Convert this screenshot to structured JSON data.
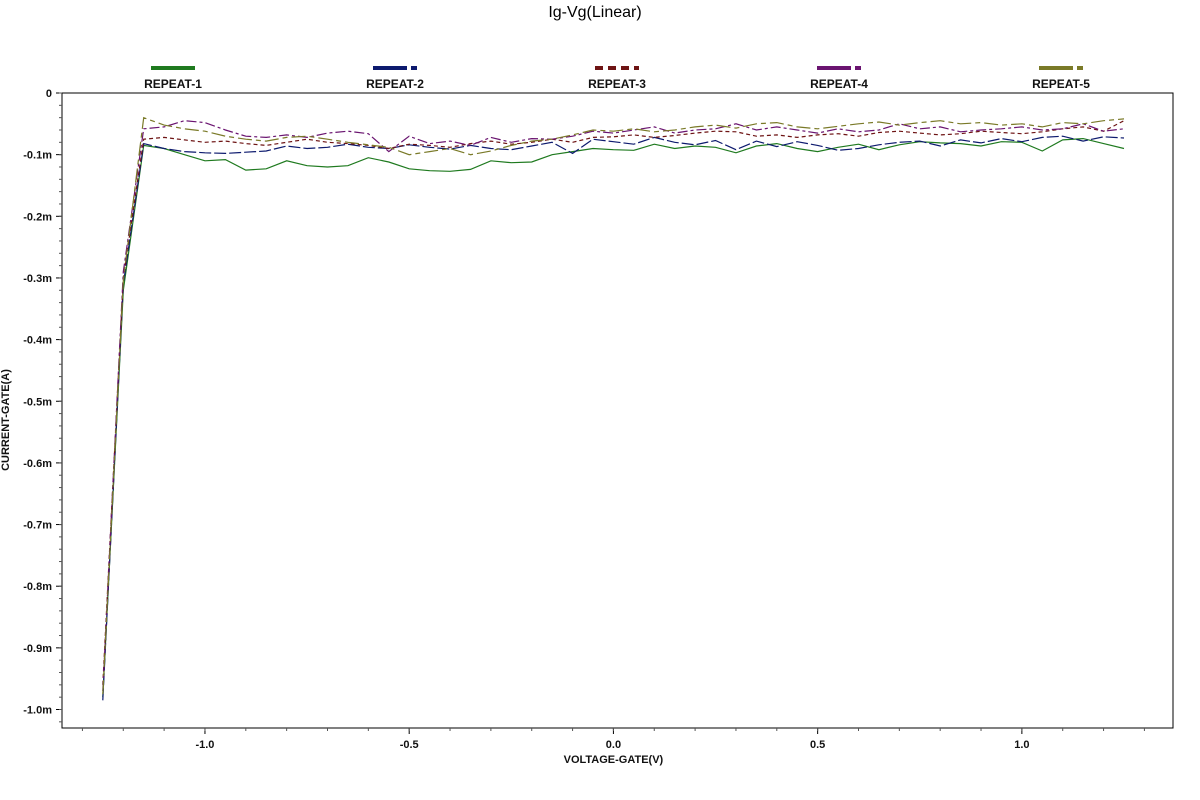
{
  "chart_data": {
    "type": "line",
    "title": "Ig-Vg(Linear)",
    "xlabel": "VOLTAGE-GATE(V)",
    "ylabel": "CURRENT-GATE(A)",
    "xlim": [
      -1.35,
      1.37
    ],
    "ylim": [
      -1.03,
      0
    ],
    "x_ticks": [
      {
        "value": -1.0,
        "label": "-1.0"
      },
      {
        "value": -0.5,
        "label": "-0.5"
      },
      {
        "value": 0.0,
        "label": "0.0"
      },
      {
        "value": 0.5,
        "label": "0.5"
      },
      {
        "value": 1.0,
        "label": "1.0"
      }
    ],
    "y_ticks": [
      {
        "value": 0,
        "label": "0"
      },
      {
        "value": -0.1,
        "label": "-0.1m"
      },
      {
        "value": -0.2,
        "label": "-0.2m"
      },
      {
        "value": -0.3,
        "label": "-0.3m"
      },
      {
        "value": -0.4,
        "label": "-0.4m"
      },
      {
        "value": -0.5,
        "label": "-0.5m"
      },
      {
        "value": -0.6,
        "label": "-0.6m"
      },
      {
        "value": -0.7,
        "label": "-0.7m"
      },
      {
        "value": -0.8,
        "label": "-0.8m"
      },
      {
        "value": -0.9,
        "label": "-0.9m"
      },
      {
        "value": -1.0,
        "label": "-1.0m"
      }
    ],
    "grid": false,
    "legend_position": "top",
    "series": [
      {
        "name": "REPEAT-1",
        "color": "#1f7a1f",
        "dash": "",
        "x": [
          -1.25,
          -1.2,
          -1.15,
          -1.1,
          -1.05,
          -1.0,
          -0.95,
          -0.9,
          -0.85,
          -0.8,
          -0.75,
          -0.7,
          -0.65,
          -0.6,
          -0.55,
          -0.5,
          -0.45,
          -0.4,
          -0.35,
          -0.3,
          -0.25,
          -0.2,
          -0.15,
          -0.1,
          -0.05,
          0.0,
          0.05,
          0.1,
          0.15,
          0.2,
          0.25,
          0.3,
          0.35,
          0.4,
          0.45,
          0.5,
          0.55,
          0.6,
          0.65,
          0.7,
          0.75,
          0.8,
          0.85,
          0.9,
          0.95,
          1.0,
          1.05,
          1.1,
          1.15,
          1.2,
          1.25
        ],
        "y": [
          -0.98,
          -0.32,
          -0.085,
          -0.09,
          -0.1,
          -0.11,
          -0.108,
          -0.125,
          -0.123,
          -0.11,
          -0.118,
          -0.12,
          -0.118,
          -0.105,
          -0.112,
          -0.123,
          -0.126,
          -0.127,
          -0.124,
          -0.11,
          -0.113,
          -0.112,
          -0.1,
          -0.095,
          -0.09,
          -0.092,
          -0.093,
          -0.083,
          -0.09,
          -0.086,
          -0.088,
          -0.097,
          -0.086,
          -0.082,
          -0.09,
          -0.095,
          -0.088,
          -0.083,
          -0.092,
          -0.084,
          -0.079,
          -0.081,
          -0.082,
          -0.086,
          -0.079,
          -0.08,
          -0.094,
          -0.076,
          -0.074,
          -0.082,
          -0.09
        ]
      },
      {
        "name": "REPEAT-2",
        "color": "#0d1a6e",
        "dash": "12,3",
        "x": [
          -1.25,
          -1.2,
          -1.15,
          -1.1,
          -1.05,
          -1.0,
          -0.95,
          -0.9,
          -0.85,
          -0.8,
          -0.75,
          -0.7,
          -0.65,
          -0.6,
          -0.55,
          -0.5,
          -0.45,
          -0.4,
          -0.35,
          -0.3,
          -0.25,
          -0.2,
          -0.15,
          -0.1,
          -0.05,
          0.0,
          0.05,
          0.1,
          0.15,
          0.2,
          0.25,
          0.3,
          0.35,
          0.4,
          0.45,
          0.5,
          0.55,
          0.6,
          0.65,
          0.7,
          0.75,
          0.8,
          0.85,
          0.9,
          0.95,
          1.0,
          1.05,
          1.1,
          1.15,
          1.2,
          1.25
        ],
        "y": [
          -0.985,
          -0.31,
          -0.082,
          -0.09,
          -0.095,
          -0.097,
          -0.098,
          -0.096,
          -0.094,
          -0.086,
          -0.09,
          -0.088,
          -0.083,
          -0.088,
          -0.09,
          -0.084,
          -0.088,
          -0.091,
          -0.085,
          -0.09,
          -0.092,
          -0.086,
          -0.08,
          -0.098,
          -0.075,
          -0.079,
          -0.083,
          -0.072,
          -0.08,
          -0.084,
          -0.077,
          -0.092,
          -0.078,
          -0.087,
          -0.079,
          -0.085,
          -0.093,
          -0.09,
          -0.084,
          -0.08,
          -0.078,
          -0.086,
          -0.076,
          -0.081,
          -0.074,
          -0.079,
          -0.072,
          -0.07,
          -0.078,
          -0.071,
          -0.073
        ]
      },
      {
        "name": "REPEAT-3",
        "color": "#6e1414",
        "dash": "4,3",
        "x": [
          -1.25,
          -1.2,
          -1.15,
          -1.1,
          -1.05,
          -1.0,
          -0.95,
          -0.9,
          -0.85,
          -0.8,
          -0.75,
          -0.7,
          -0.65,
          -0.6,
          -0.55,
          -0.5,
          -0.45,
          -0.4,
          -0.35,
          -0.3,
          -0.25,
          -0.2,
          -0.15,
          -0.1,
          -0.05,
          0.0,
          0.05,
          0.1,
          0.15,
          0.2,
          0.25,
          0.3,
          0.35,
          0.4,
          0.45,
          0.5,
          0.55,
          0.6,
          0.65,
          0.7,
          0.75,
          0.8,
          0.85,
          0.9,
          0.95,
          1.0,
          1.05,
          1.1,
          1.15,
          1.2,
          1.25
        ],
        "y": [
          -0.96,
          -0.3,
          -0.075,
          -0.072,
          -0.076,
          -0.08,
          -0.078,
          -0.082,
          -0.085,
          -0.08,
          -0.075,
          -0.08,
          -0.082,
          -0.085,
          -0.09,
          -0.083,
          -0.085,
          -0.088,
          -0.082,
          -0.078,
          -0.083,
          -0.08,
          -0.075,
          -0.08,
          -0.072,
          -0.071,
          -0.068,
          -0.072,
          -0.069,
          -0.065,
          -0.062,
          -0.063,
          -0.07,
          -0.068,
          -0.072,
          -0.068,
          -0.066,
          -0.07,
          -0.064,
          -0.062,
          -0.065,
          -0.068,
          -0.066,
          -0.062,
          -0.064,
          -0.066,
          -0.063,
          -0.058,
          -0.055,
          -0.062,
          -0.045
        ]
      },
      {
        "name": "REPEAT-4",
        "color": "#6a1470",
        "dash": "10,3,3,3",
        "x": [
          -1.25,
          -1.2,
          -1.15,
          -1.1,
          -1.05,
          -1.0,
          -0.95,
          -0.9,
          -0.85,
          -0.8,
          -0.75,
          -0.7,
          -0.65,
          -0.6,
          -0.55,
          -0.5,
          -0.45,
          -0.4,
          -0.35,
          -0.3,
          -0.25,
          -0.2,
          -0.15,
          -0.1,
          -0.05,
          0.0,
          0.05,
          0.1,
          0.15,
          0.2,
          0.25,
          0.3,
          0.35,
          0.4,
          0.45,
          0.5,
          0.55,
          0.6,
          0.65,
          0.7,
          0.75,
          0.8,
          0.85,
          0.9,
          0.95,
          1.0,
          1.05,
          1.1,
          1.15,
          1.2,
          1.25
        ],
        "y": [
          -0.97,
          -0.29,
          -0.058,
          -0.055,
          -0.045,
          -0.048,
          -0.06,
          -0.07,
          -0.072,
          -0.068,
          -0.072,
          -0.065,
          -0.062,
          -0.066,
          -0.095,
          -0.07,
          -0.082,
          -0.078,
          -0.085,
          -0.072,
          -0.08,
          -0.074,
          -0.075,
          -0.07,
          -0.062,
          -0.065,
          -0.06,
          -0.055,
          -0.065,
          -0.06,
          -0.058,
          -0.05,
          -0.06,
          -0.055,
          -0.06,
          -0.065,
          -0.058,
          -0.063,
          -0.06,
          -0.05,
          -0.058,
          -0.055,
          -0.063,
          -0.06,
          -0.058,
          -0.055,
          -0.06,
          -0.058,
          -0.05,
          -0.062,
          -0.058
        ]
      },
      {
        "name": "REPEAT-5",
        "color": "#7a7a28",
        "dash": "14,4,5,4",
        "x": [
          -1.25,
          -1.2,
          -1.15,
          -1.1,
          -1.05,
          -1.0,
          -0.95,
          -0.9,
          -0.85,
          -0.8,
          -0.75,
          -0.7,
          -0.65,
          -0.6,
          -0.55,
          -0.5,
          -0.45,
          -0.4,
          -0.35,
          -0.3,
          -0.25,
          -0.2,
          -0.15,
          -0.1,
          -0.05,
          0.0,
          0.05,
          0.1,
          0.15,
          0.2,
          0.25,
          0.3,
          0.35,
          0.4,
          0.45,
          0.5,
          0.55,
          0.6,
          0.65,
          0.7,
          0.75,
          0.8,
          0.85,
          0.9,
          0.95,
          1.0,
          1.05,
          1.1,
          1.15,
          1.2,
          1.25
        ],
        "y": [
          -0.975,
          -0.305,
          -0.04,
          -0.052,
          -0.058,
          -0.062,
          -0.07,
          -0.075,
          -0.078,
          -0.072,
          -0.07,
          -0.075,
          -0.08,
          -0.084,
          -0.088,
          -0.1,
          -0.095,
          -0.09,
          -0.1,
          -0.094,
          -0.085,
          -0.078,
          -0.075,
          -0.068,
          -0.06,
          -0.062,
          -0.058,
          -0.063,
          -0.06,
          -0.055,
          -0.052,
          -0.057,
          -0.05,
          -0.048,
          -0.055,
          -0.058,
          -0.054,
          -0.05,
          -0.047,
          -0.052,
          -0.048,
          -0.045,
          -0.05,
          -0.048,
          -0.052,
          -0.05,
          -0.055,
          -0.048,
          -0.05,
          -0.045,
          -0.042
        ]
      }
    ]
  }
}
